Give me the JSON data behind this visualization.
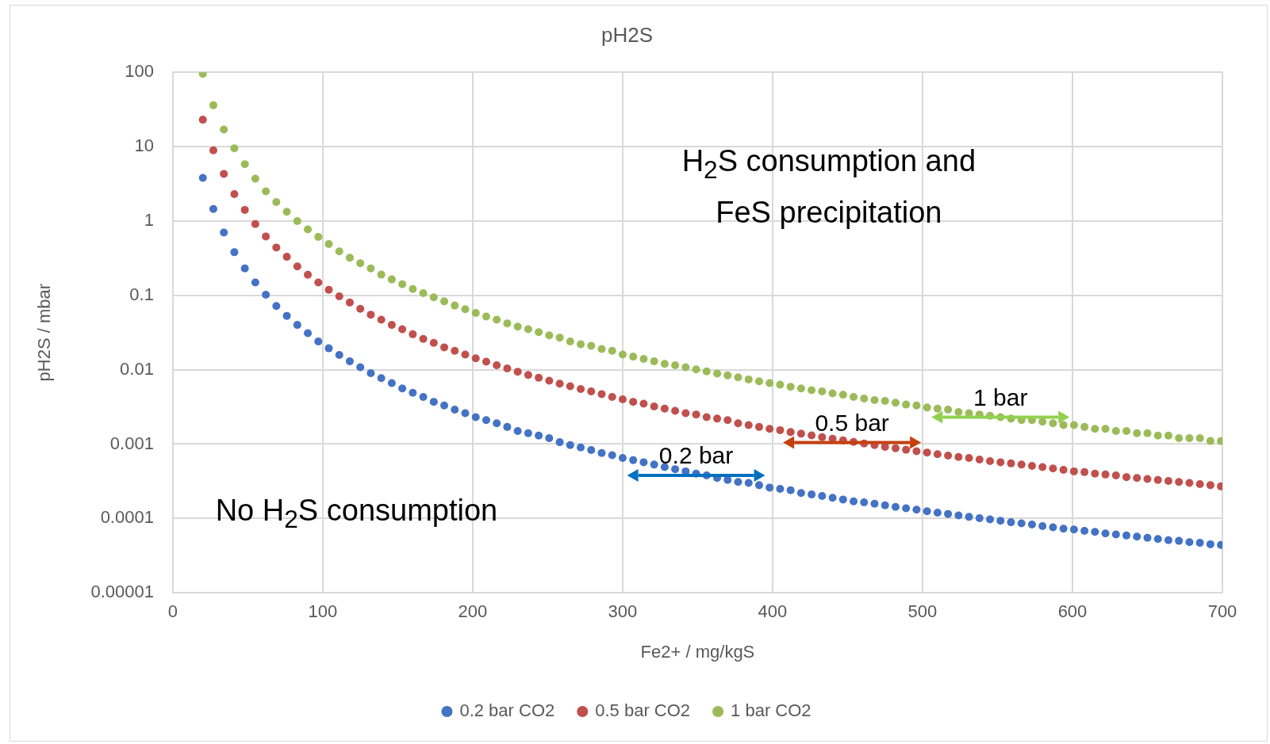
{
  "chart_data": {
    "type": "scatter",
    "title": "pH2S",
    "xlabel": "Fe2+ / mg/kgS",
    "ylabel": "pH2S / mbar",
    "x": [
      20,
      27,
      34,
      41,
      48,
      55,
      62,
      69,
      76,
      83,
      90,
      97,
      104,
      111,
      118,
      125,
      132,
      139,
      146,
      153,
      160,
      167,
      174,
      181,
      188,
      195,
      202,
      209,
      216,
      223,
      230,
      237,
      244,
      251,
      258,
      265,
      272,
      279,
      286,
      293,
      300,
      307,
      314,
      321,
      328,
      335,
      342,
      349,
      356,
      363,
      370,
      377,
      384,
      391,
      398,
      405,
      412,
      419,
      426,
      433,
      440,
      447,
      454,
      461,
      468,
      475,
      482,
      489,
      496,
      503,
      510,
      517,
      524,
      531,
      538,
      545,
      552,
      559,
      566,
      573,
      580,
      587,
      594,
      601,
      608,
      615,
      622,
      629,
      636,
      643,
      650,
      657,
      664,
      671,
      678,
      685,
      692,
      699
    ],
    "series": [
      {
        "name": "0.2 bar CO2",
        "color": "#4472c4",
        "values": [
          3.8,
          1.45,
          0.7,
          0.38,
          0.23,
          0.149,
          0.102,
          0.072,
          0.053,
          0.04,
          0.031,
          0.024,
          0.0194,
          0.0158,
          0.013,
          0.0108,
          0.009,
          0.0077,
          0.0066,
          0.0056,
          0.0049,
          0.0043,
          0.0037,
          0.0033,
          0.0029,
          0.0026,
          0.0023,
          0.0021,
          0.0019,
          0.0017,
          0.0015,
          0.0014,
          0.0013,
          0.0012,
          0.00106,
          0.00097,
          0.0009,
          0.00083,
          0.00076,
          0.00071,
          0.00065,
          0.00061,
          0.00057,
          0.00053,
          0.00049,
          0.00046,
          0.00043,
          0.0004,
          0.00038,
          0.00035,
          0.00033,
          0.00031,
          0.0003,
          0.00028,
          0.00026,
          0.00025,
          0.00024,
          0.00022,
          0.00021,
          0.0002,
          0.00019,
          0.00018,
          0.00017,
          0.000165,
          0.000158,
          0.00015,
          0.000143,
          0.000137,
          0.000131,
          0.000125,
          0.00012,
          0.000115,
          0.00011,
          0.000105,
          0.000101,
          9.7e-05,
          9.3e-05,
          8.9e-05,
          8.6e-05,
          8.3e-05,
          7.9e-05,
          7.6e-05,
          7.3e-05,
          7.1e-05,
          6.8e-05,
          6.6e-05,
          6.3e-05,
          6.1e-05,
          5.9e-05,
          5.7e-05,
          5.5e-05,
          5.3e-05,
          5.1e-05,
          5e-05,
          4.8e-05,
          4.7e-05,
          4.5e-05,
          4.4e-05
        ]
      },
      {
        "name": "0.5 bar CO2",
        "color": "#c0504d",
        "values": [
          23,
          8.9,
          4.3,
          2.3,
          1.41,
          0.91,
          0.62,
          0.44,
          0.33,
          0.245,
          0.189,
          0.149,
          0.119,
          0.097,
          0.08,
          0.066,
          0.055,
          0.047,
          0.04,
          0.035,
          0.03,
          0.026,
          0.023,
          0.02,
          0.018,
          0.016,
          0.0142,
          0.0128,
          0.0115,
          0.0104,
          0.0094,
          0.0085,
          0.0078,
          0.0071,
          0.0065,
          0.006,
          0.0055,
          0.0051,
          0.0047,
          0.0043,
          0.004,
          0.0037,
          0.0035,
          0.0032,
          0.003,
          0.0028,
          0.0026,
          0.0025,
          0.0023,
          0.0022,
          0.0021,
          0.0019,
          0.0018,
          0.0017,
          0.0016,
          0.00154,
          0.00145,
          0.00138,
          0.00131,
          0.00124,
          0.00118,
          0.00112,
          0.00107,
          0.00102,
          0.00097,
          0.00092,
          0.00088,
          0.00084,
          0.0008,
          0.00077,
          0.00073,
          0.0007,
          0.00067,
          0.00065,
          0.00062,
          0.00059,
          0.00057,
          0.00055,
          0.00053,
          0.00051,
          0.00049,
          0.00047,
          0.00045,
          0.00043,
          0.00042,
          0.0004,
          0.00039,
          0.00038,
          0.00036,
          0.00035,
          0.00034,
          0.00033,
          0.00032,
          0.00031,
          0.0003,
          0.00029,
          0.00028,
          0.00027
        ]
      },
      {
        "name": "1 bar CO2",
        "color": "#9bbb59",
        "values": [
          95,
          36,
          17,
          9.5,
          5.8,
          3.7,
          2.5,
          1.8,
          1.33,
          1.0,
          0.77,
          0.61,
          0.49,
          0.39,
          0.32,
          0.27,
          0.23,
          0.19,
          0.164,
          0.141,
          0.122,
          0.107,
          0.094,
          0.083,
          0.073,
          0.065,
          0.058,
          0.052,
          0.047,
          0.042,
          0.038,
          0.035,
          0.032,
          0.029,
          0.027,
          0.024,
          0.022,
          0.021,
          0.019,
          0.018,
          0.016,
          0.015,
          0.014,
          0.013,
          0.012,
          0.0115,
          0.0108,
          0.0101,
          0.0095,
          0.0089,
          0.0084,
          0.0079,
          0.0074,
          0.007,
          0.0066,
          0.0063,
          0.0059,
          0.0056,
          0.0053,
          0.0051,
          0.0048,
          0.0046,
          0.0043,
          0.0041,
          0.0039,
          0.0038,
          0.0036,
          0.0034,
          0.0033,
          0.0031,
          0.003,
          0.0029,
          0.0027,
          0.0026,
          0.0025,
          0.0024,
          0.0023,
          0.0022,
          0.0021,
          0.0021,
          0.002,
          0.0019,
          0.0018,
          0.0018,
          0.0017,
          0.0016,
          0.0016,
          0.0015,
          0.0015,
          0.0014,
          0.0014,
          0.0013,
          0.0013,
          0.0012,
          0.0012,
          0.0012,
          0.0011,
          0.0011
        ]
      }
    ],
    "xlim": [
      0,
      700
    ],
    "xticks": [
      0,
      100,
      200,
      300,
      400,
      500,
      600,
      700
    ],
    "ylim": [
      1e-05,
      100
    ],
    "yticks": [
      {
        "value": 1e-05,
        "label": "0.00001"
      },
      0.0001,
      0.001,
      0.01,
      0.1,
      1,
      10,
      100
    ],
    "log": "y",
    "grid": true,
    "legend": "bottom",
    "marker": "circle",
    "annotations": [
      "H$_{2}$S consumption and FeS precipitation",
      "No H$_{2}$S consumption",
      {
        "text": "0.2 bar",
        "x": 349,
        "y": 0.00038
      },
      {
        "text": "0.5 bar",
        "x": 453,
        "y": 0.00105
      },
      {
        "text": "1 bar",
        "x": 552,
        "y": 0.0023
      }
    ]
  }
}
